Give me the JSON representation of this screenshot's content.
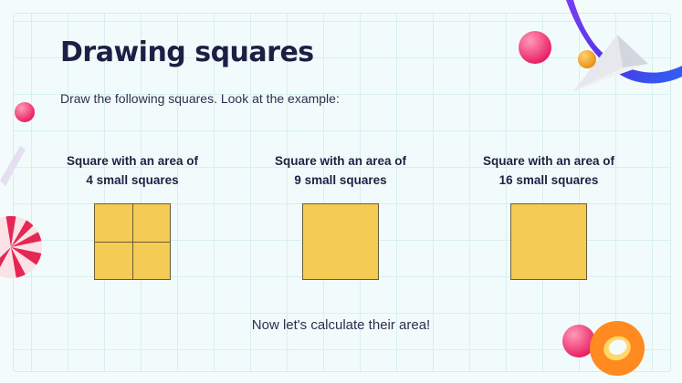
{
  "slide": {
    "title": "Drawing squares",
    "instruction": "Draw the following squares. Look at the example:",
    "footer": "Now let's calculate their area!"
  },
  "squares": [
    {
      "line1": "Square with an area of",
      "line2": "4 small squares",
      "subdivided": true
    },
    {
      "line1": "Square with an area of",
      "line2": "9 small squares",
      "subdivided": false
    },
    {
      "line1": "Square with an area of",
      "line2": "16 small squares",
      "subdivided": false
    }
  ],
  "colors": {
    "square_fill": "#f3cb55",
    "square_border": "#6a5d35",
    "title": "#1d1f44",
    "grid_line": "#d9efef",
    "background": "#f4fbfb"
  },
  "decorations": [
    "pink-ball-icon",
    "gold-ball-icon",
    "paper-plane-icon",
    "purple-ribbon-icon",
    "striped-ball-icon",
    "orange-ring-icon"
  ]
}
